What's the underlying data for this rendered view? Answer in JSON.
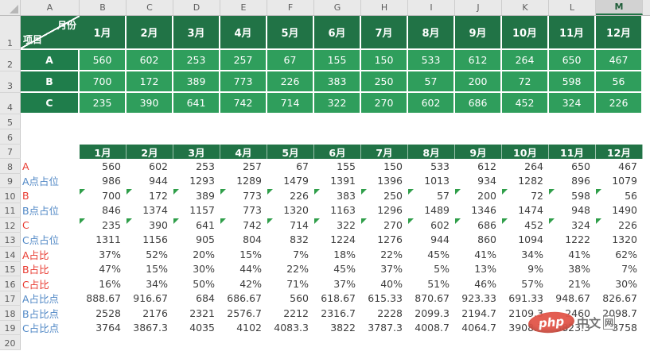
{
  "colors": {
    "table_header_green": "#217346",
    "table_label_green": "#1f7d4b",
    "table_cell_green": "#2f9e5c",
    "label_red": "#e8392f",
    "label_blue": "#4f87c5",
    "error_flag_green": "#2f9e49",
    "watermark_red": "#e25649",
    "header_strip_gray": "#e9e9e9",
    "selected_column_gray": "#d2d2d2"
  },
  "sheet": {
    "selected_column": "M",
    "columns": [
      {
        "label": "A",
        "cls": "colA"
      },
      {
        "label": "B"
      },
      {
        "label": "C"
      },
      {
        "label": "D"
      },
      {
        "label": "E"
      },
      {
        "label": "F"
      },
      {
        "label": "G"
      },
      {
        "label": "H"
      },
      {
        "label": "I"
      },
      {
        "label": "J"
      },
      {
        "label": "K"
      },
      {
        "label": "L"
      },
      {
        "label": "M",
        "cls": "selected"
      }
    ],
    "gutter": {
      "r1": "1",
      "r5": "5",
      "r6": "6",
      "r7": "7",
      "r20": "20"
    }
  },
  "months": [
    "1月",
    "2月",
    "3月",
    "4月",
    "5月",
    "6月",
    "7月",
    "8月",
    "9月",
    "10月",
    "11月",
    "12月"
  ],
  "top_table": {
    "corner_top": "月份",
    "corner_bottom": "项目",
    "rows": [
      {
        "num": "2",
        "label": "A",
        "values": [
          "560",
          "602",
          "253",
          "257",
          "67",
          "155",
          "150",
          "533",
          "612",
          "264",
          "650",
          "467"
        ]
      },
      {
        "num": "3",
        "label": "B",
        "values": [
          "700",
          "172",
          "389",
          "773",
          "226",
          "383",
          "250",
          "57",
          "200",
          "72",
          "598",
          "56"
        ]
      },
      {
        "num": "4",
        "label": "C",
        "values": [
          "235",
          "390",
          "641",
          "742",
          "714",
          "322",
          "270",
          "602",
          "686",
          "452",
          "324",
          "226"
        ]
      }
    ]
  },
  "bottom_table": {
    "rows": [
      {
        "num": "8",
        "label": "A",
        "cls": "red",
        "flags": false,
        "values": [
          "560",
          "602",
          "253",
          "257",
          "67",
          "155",
          "150",
          "533",
          "612",
          "264",
          "650",
          "467"
        ]
      },
      {
        "num": "9",
        "label": "A点占位",
        "cls": "blue",
        "flags": false,
        "values": [
          "986",
          "944",
          "1293",
          "1289",
          "1479",
          "1391",
          "1396",
          "1013",
          "934",
          "1282",
          "896",
          "1079"
        ]
      },
      {
        "num": "10",
        "label": "B",
        "cls": "red",
        "flags": true,
        "values": [
          "700",
          "172",
          "389",
          "773",
          "226",
          "383",
          "250",
          "57",
          "200",
          "72",
          "598",
          "56"
        ]
      },
      {
        "num": "11",
        "label": "B点占位",
        "cls": "blue",
        "flags": false,
        "values": [
          "846",
          "1374",
          "1157",
          "773",
          "1320",
          "1163",
          "1296",
          "1489",
          "1346",
          "1474",
          "948",
          "1490"
        ]
      },
      {
        "num": "12",
        "label": "C",
        "cls": "red",
        "flags": true,
        "values": [
          "235",
          "390",
          "641",
          "742",
          "714",
          "322",
          "270",
          "602",
          "686",
          "452",
          "324",
          "226"
        ]
      },
      {
        "num": "13",
        "label": "C点占位",
        "cls": "blue",
        "flags": false,
        "values": [
          "1311",
          "1156",
          "905",
          "804",
          "832",
          "1224",
          "1276",
          "944",
          "860",
          "1094",
          "1222",
          "1320"
        ]
      },
      {
        "num": "14",
        "label": "A占比",
        "cls": "red",
        "flags": false,
        "values": [
          "37%",
          "52%",
          "20%",
          "15%",
          "7%",
          "18%",
          "22%",
          "45%",
          "41%",
          "34%",
          "41%",
          "62%"
        ]
      },
      {
        "num": "15",
        "label": "B占比",
        "cls": "red",
        "flags": false,
        "values": [
          "47%",
          "15%",
          "30%",
          "44%",
          "22%",
          "45%",
          "37%",
          "5%",
          "13%",
          "9%",
          "38%",
          "7%"
        ]
      },
      {
        "num": "16",
        "label": "C占比",
        "cls": "red",
        "flags": false,
        "values": [
          "16%",
          "34%",
          "50%",
          "42%",
          "71%",
          "37%",
          "40%",
          "51%",
          "46%",
          "57%",
          "21%",
          "30%"
        ]
      },
      {
        "num": "17",
        "label": "A占比点",
        "cls": "blue",
        "flags": false,
        "values": [
          "888.67",
          "916.67",
          "684",
          "686.67",
          "560",
          "618.67",
          "615.33",
          "870.67",
          "923.33",
          "691.33",
          "948.67",
          "826.67"
        ]
      },
      {
        "num": "18",
        "label": "B占比点",
        "cls": "blue",
        "flags": false,
        "values": [
          "2528",
          "2176",
          "2321",
          "2576.7",
          "2212",
          "2316.7",
          "2228",
          "2099.3",
          "2194.7",
          "2109.3",
          "2460",
          "2098.7"
        ]
      },
      {
        "num": "19",
        "label": "C占比点",
        "cls": "blue",
        "flags": false,
        "values": [
          "3764",
          "3867.3",
          "4035",
          "4102",
          "4083.3",
          "3822",
          "3787.3",
          "4008.7",
          "4064.7",
          "3908.7",
          "3823.3",
          "3758"
        ]
      }
    ]
  },
  "watermark": {
    "logo": "php",
    "text": "中文",
    "text2": "网"
  }
}
